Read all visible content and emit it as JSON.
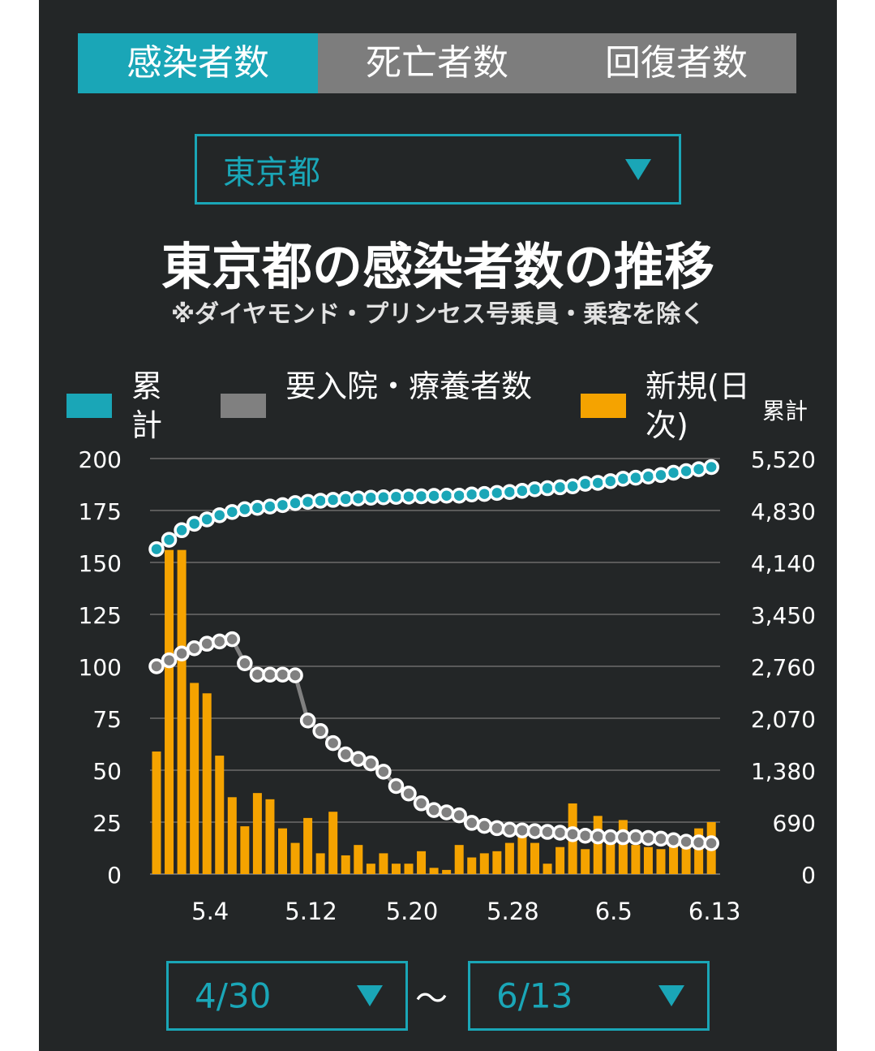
{
  "tabs": [
    "感染者数",
    "死亡者数",
    "回復者数"
  ],
  "active_tab": 0,
  "prefecture_select": "東京都",
  "colors": {
    "accent": "#1aa6b7",
    "cumulative": "#1aa6b7",
    "hospitalized": "#808080",
    "new_daily": "#f5a300",
    "background": "#232627"
  },
  "date_range": {
    "from": "4/30",
    "to": "6/13",
    "separator": "〜"
  },
  "chart_data": {
    "type": "bar+line",
    "title": "東京都の感染者数の推移",
    "subtitle": "※ダイヤモンド・プリンセス号乗員・乗客を除く",
    "right_axis_title": "累計",
    "legend": {
      "cumulative": "累計",
      "hospitalized": "要入院・療養者数",
      "new_daily": "新規(日次)"
    },
    "legend_placement": "top",
    "grid": true,
    "y_left": {
      "min": 0,
      "max": 200,
      "ticks": [
        "0",
        "25",
        "50",
        "75",
        "100",
        "125",
        "150",
        "175",
        "200"
      ]
    },
    "y_right": {
      "min": 0,
      "max": 5520,
      "ticks": [
        "0",
        "690",
        "1,380",
        "2,070",
        "2,760",
        "3,450",
        "4,140",
        "4,830",
        "5,520"
      ]
    },
    "x_ticks": [
      {
        "label": "5.4",
        "index": 4
      },
      {
        "label": "5.12",
        "index": 12
      },
      {
        "label": "5.20",
        "index": 20
      },
      {
        "label": "5.28",
        "index": 28
      },
      {
        "label": "6.5",
        "index": 36
      },
      {
        "label": "6.13",
        "index": 44
      }
    ],
    "dates": [
      "4/30",
      "5/1",
      "5/2",
      "5/3",
      "5/4",
      "5/5",
      "5/6",
      "5/7",
      "5/8",
      "5/9",
      "5/10",
      "5/11",
      "5/12",
      "5/13",
      "5/14",
      "5/15",
      "5/16",
      "5/17",
      "5/18",
      "5/19",
      "5/20",
      "5/21",
      "5/22",
      "5/23",
      "5/24",
      "5/25",
      "5/26",
      "5/27",
      "5/28",
      "5/29",
      "5/30",
      "5/31",
      "6/1",
      "6/2",
      "6/3",
      "6/4",
      "6/5",
      "6/6",
      "6/7",
      "6/8",
      "6/9",
      "6/10",
      "6/11",
      "6/12",
      "6/13"
    ],
    "series": [
      {
        "name": "新規(日次)",
        "axis": "left",
        "kind": "bar",
        "values": [
          59,
          156,
          156,
          92,
          87,
          57,
          37,
          23,
          39,
          36,
          22,
          15,
          27,
          10,
          30,
          9,
          14,
          5,
          10,
          5,
          5,
          11,
          3,
          2,
          14,
          8,
          10,
          11,
          15,
          22,
          15,
          5,
          13,
          34,
          12,
          28,
          20,
          26,
          14,
          13,
          12,
          16,
          18,
          22,
          25
        ]
      },
      {
        "name": "要入院・療養者数",
        "axis": "right",
        "kind": "line",
        "values": [
          2760,
          2840,
          2930,
          3000,
          3060,
          3090,
          3120,
          2800,
          2650,
          2650,
          2650,
          2640,
          2040,
          1900,
          1740,
          1590,
          1530,
          1470,
          1360,
          1170,
          1070,
          940,
          850,
          820,
          780,
          680,
          640,
          610,
          590,
          580,
          570,
          560,
          550,
          530,
          510,
          500,
          490,
          490,
          490,
          480,
          470,
          450,
          430,
          420,
          410
        ]
      },
      {
        "name": "累計",
        "axis": "right",
        "kind": "line",
        "values": [
          4317,
          4441,
          4568,
          4654,
          4712,
          4767,
          4810,
          4847,
          4865,
          4883,
          4902,
          4928,
          4945,
          4960,
          4971,
          4983,
          4991,
          5000,
          5005,
          5011,
          5015,
          5019,
          5024,
          5027,
          5027,
          5043,
          5050,
          5063,
          5075,
          5091,
          5112,
          5126,
          5138,
          5151,
          5185,
          5197,
          5220,
          5252,
          5265,
          5281,
          5300,
          5331,
          5353,
          5379,
          5407
        ]
      }
    ]
  }
}
